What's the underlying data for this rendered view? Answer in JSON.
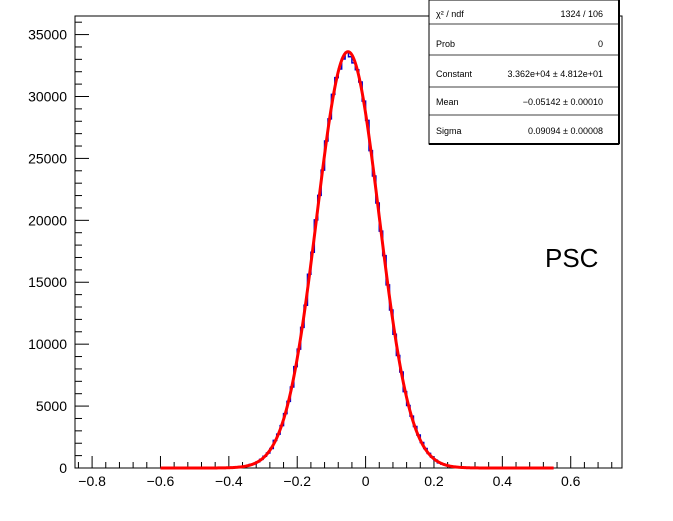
{
  "chart_data": {
    "type": "line",
    "title": "",
    "xlabel": "",
    "ylabel": "",
    "xlim": [
      -0.85,
      0.75
    ],
    "ylim": [
      0,
      36500
    ],
    "grid": false,
    "x_ticks": [
      -0.8,
      -0.6,
      -0.4,
      -0.2,
      0,
      0.2,
      0.4,
      0.6
    ],
    "x_tick_labels": [
      "−0.8",
      "−0.6",
      "−0.4",
      "−0.2",
      "0",
      "0.2",
      "0.4",
      "0.6"
    ],
    "y_ticks": [
      0,
      5000,
      10000,
      15000,
      20000,
      25000,
      30000,
      35000
    ],
    "y_tick_labels": [
      "0",
      "5000",
      "10000",
      "15000",
      "20000",
      "25000",
      "30000",
      "35000"
    ],
    "histogram": {
      "name": "",
      "color": "#0000cc",
      "x_range": [
        -0.6,
        0.55
      ],
      "gaussian": {
        "constant": 33620,
        "mean": -0.05142,
        "sigma": 0.09094
      }
    },
    "fit": {
      "name": "",
      "color": "#ff0000",
      "function": "gaus",
      "constant": 33620,
      "mean": -0.05142,
      "sigma": 0.09094,
      "x_range": [
        -0.6,
        0.55
      ]
    },
    "annotations": [
      "PSC"
    ]
  },
  "stats_box": {
    "rows": [
      {
        "label": "χ² / ndf",
        "value": "1324 / 106"
      },
      {
        "label": "Prob",
        "value": "0"
      },
      {
        "label": "Constant",
        "value": "3.362e+04 ± 4.812e+01"
      },
      {
        "label": "Mean",
        "value": "−0.05142 ± 0.00010"
      },
      {
        "label": "Sigma",
        "value": "0.09094 ± 0.00008"
      }
    ]
  },
  "annotation": {
    "text": "PSC"
  }
}
